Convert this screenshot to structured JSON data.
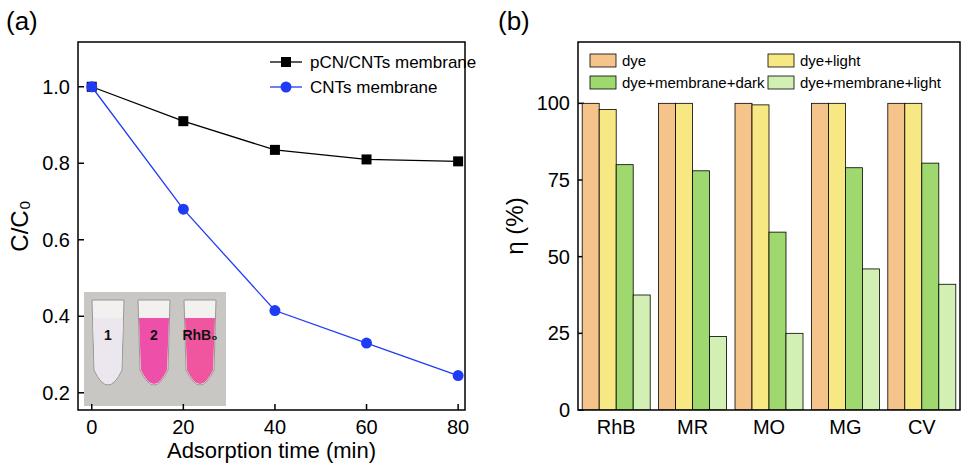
{
  "chart_data": [
    {
      "type": "line",
      "panel_label": "(a)",
      "x_label": "Adsorption time (min)",
      "y_label": "C/C₀",
      "x": [
        0,
        20,
        40,
        60,
        80
      ],
      "series": [
        {
          "name": "pCN/CNTs membrane",
          "color": "#000000",
          "marker": "square",
          "values": [
            1.0,
            0.91,
            0.835,
            0.81,
            0.805
          ]
        },
        {
          "name": "CNTs membrane",
          "color": "#1f3cf5",
          "marker": "circle",
          "values": [
            1.0,
            0.68,
            0.415,
            0.33,
            0.245
          ]
        }
      ],
      "xlim": [
        -3,
        81.5
      ],
      "xticks": [
        0,
        20,
        40,
        60,
        80
      ],
      "ylim": [
        0.155,
        1.117
      ],
      "yticks": [
        0.2,
        0.4,
        0.6,
        0.8,
        {
          "value": 1,
          "label": "1.0"
        }
      ],
      "annotations": [
        "1",
        "2",
        "RhB₀"
      ],
      "legend": "upper right",
      "grid": false
    },
    {
      "type": "bar",
      "panel_label": "(b)",
      "y_label": "η (%)",
      "categories": [
        "RhB",
        "MR",
        "MO",
        "MG",
        "CV"
      ],
      "series": [
        {
          "name": "dye",
          "color": "#f5c48a",
          "values": [
            100,
            100,
            100,
            100,
            100
          ]
        },
        {
          "name": "dye+light",
          "color": "#f8e884",
          "values": [
            98,
            100,
            99.5,
            100,
            100
          ]
        },
        {
          "name": "dye+membrane+dark",
          "color": "#9ed86e",
          "values": [
            80,
            78,
            58,
            79,
            80.5
          ]
        },
        {
          "name": "dye+membrane+light",
          "color": "#d3f0b4",
          "values": [
            37.5,
            24,
            25,
            46,
            41
          ]
        }
      ],
      "ylim": [
        0,
        120
      ],
      "yticks": [
        0,
        25,
        50,
        75,
        100
      ],
      "legend": "upper left",
      "grid": false
    }
  ]
}
